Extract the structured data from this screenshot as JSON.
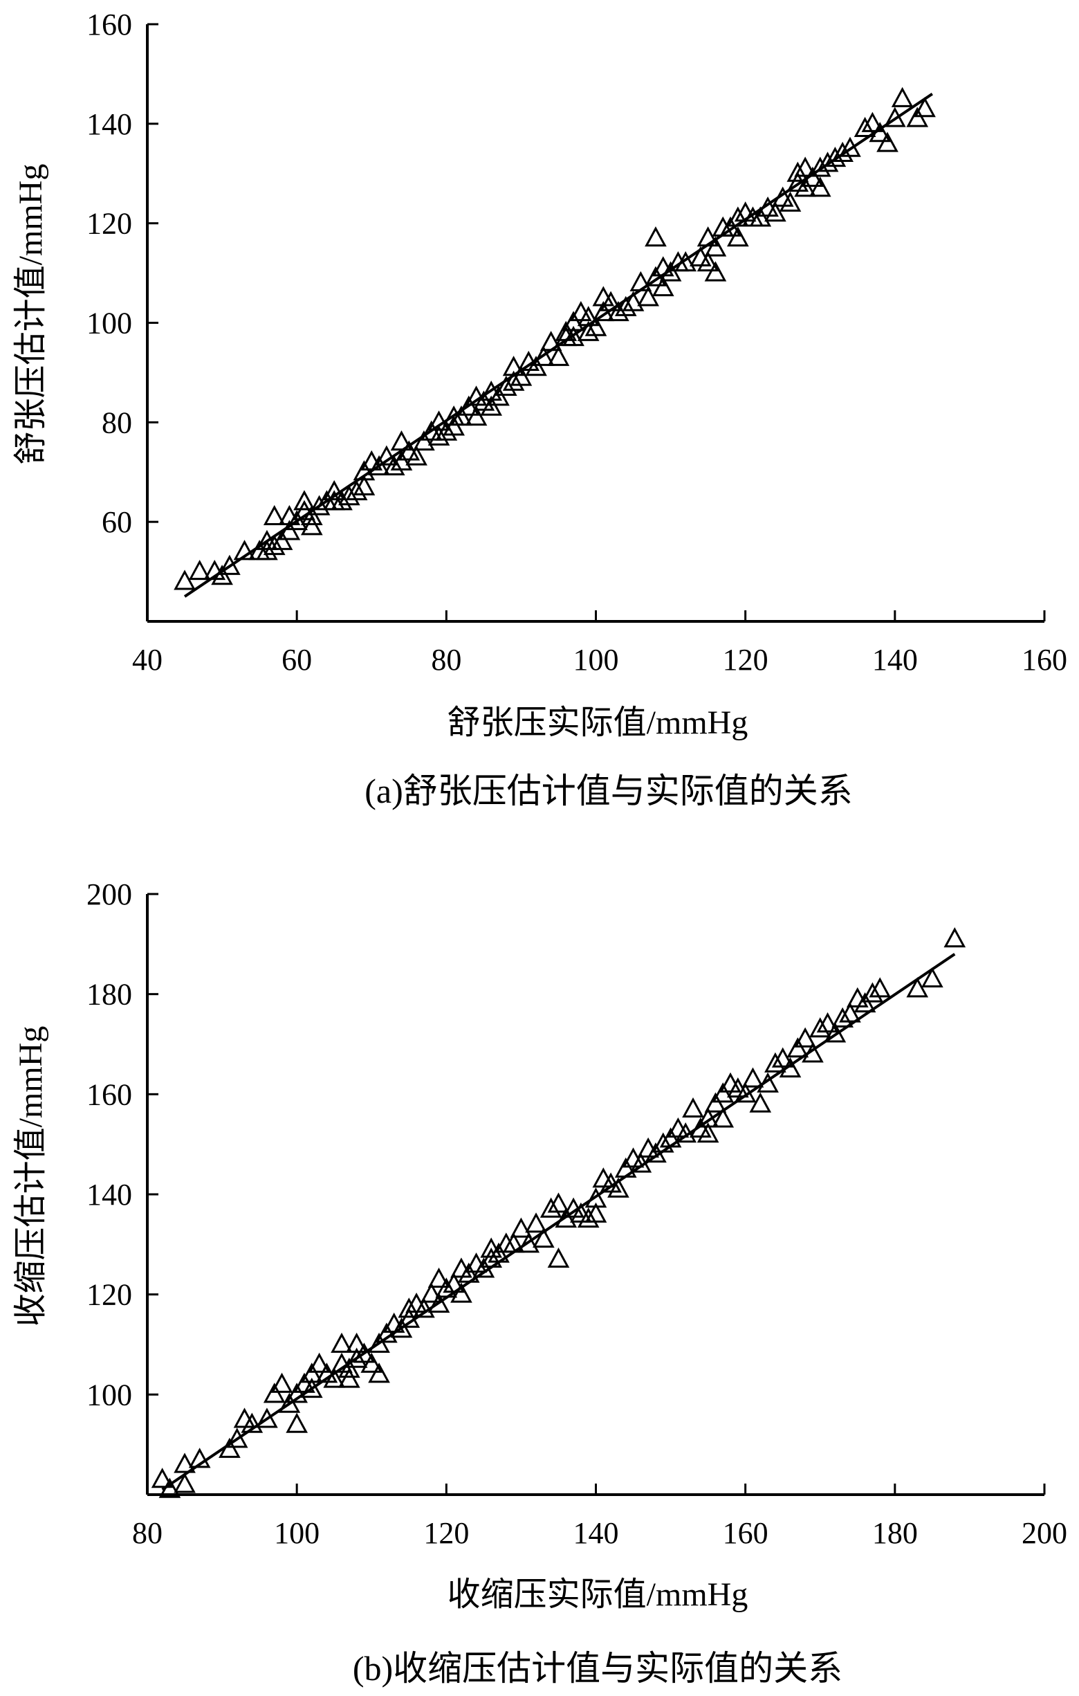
{
  "chart_data": [
    {
      "type": "scatter",
      "caption": "(a)舒张压估计值与实际值的关系",
      "xlabel": "舒张压实际值/mmHg",
      "ylabel": "舒张压估计值/mmHg",
      "xlim": [
        40,
        160
      ],
      "ylim": [
        40,
        160
      ],
      "xticks": [
        40,
        60,
        80,
        100,
        120,
        140,
        160
      ],
      "yticks": [
        60,
        80,
        100,
        120,
        140,
        160
      ],
      "marker": "triangle-open",
      "fit_line": {
        "x": [
          45,
          145
        ],
        "y": [
          45,
          146
        ]
      },
      "points": [
        [
          45,
          48
        ],
        [
          47,
          50
        ],
        [
          49,
          50
        ],
        [
          50,
          49
        ],
        [
          51,
          51
        ],
        [
          53,
          54
        ],
        [
          55,
          54
        ],
        [
          56,
          54
        ],
        [
          56,
          56
        ],
        [
          57,
          55
        ],
        [
          57,
          61
        ],
        [
          58,
          56
        ],
        [
          59,
          58
        ],
        [
          59,
          61
        ],
        [
          60,
          60
        ],
        [
          61,
          62
        ],
        [
          61,
          64
        ],
        [
          62,
          59
        ],
        [
          62,
          61
        ],
        [
          63,
          63
        ],
        [
          64,
          64
        ],
        [
          65,
          64
        ],
        [
          65,
          66
        ],
        [
          66,
          64
        ],
        [
          67,
          65
        ],
        [
          68,
          66
        ],
        [
          69,
          67
        ],
        [
          69,
          70
        ],
        [
          70,
          72
        ],
        [
          71,
          71
        ],
        [
          72,
          73
        ],
        [
          73,
          71
        ],
        [
          74,
          72
        ],
        [
          74,
          76
        ],
        [
          75,
          74
        ],
        [
          76,
          73
        ],
        [
          77,
          76
        ],
        [
          78,
          78
        ],
        [
          79,
          77
        ],
        [
          79,
          80
        ],
        [
          80,
          78
        ],
        [
          81,
          79
        ],
        [
          81,
          81
        ],
        [
          82,
          81
        ],
        [
          83,
          83
        ],
        [
          84,
          81
        ],
        [
          84,
          85
        ],
        [
          85,
          84
        ],
        [
          86,
          86
        ],
        [
          86,
          83
        ],
        [
          87,
          85
        ],
        [
          88,
          87
        ],
        [
          89,
          88
        ],
        [
          89,
          91
        ],
        [
          90,
          89
        ],
        [
          91,
          92
        ],
        [
          92,
          91
        ],
        [
          93,
          93
        ],
        [
          94,
          96
        ],
        [
          95,
          93
        ],
        [
          96,
          97
        ],
        [
          96,
          98
        ],
        [
          97,
          97
        ],
        [
          97,
          100
        ],
        [
          98,
          102
        ],
        [
          99,
          101
        ],
        [
          99,
          98
        ],
        [
          100,
          99
        ],
        [
          101,
          102
        ],
        [
          101,
          105
        ],
        [
          102,
          104
        ],
        [
          103,
          102
        ],
        [
          104,
          103
        ],
        [
          105,
          104
        ],
        [
          106,
          108
        ],
        [
          107,
          105
        ],
        [
          108,
          109
        ],
        [
          108,
          117
        ],
        [
          109,
          107
        ],
        [
          109,
          111
        ],
        [
          110,
          110
        ],
        [
          111,
          112
        ],
        [
          112,
          112
        ],
        [
          114,
          113
        ],
        [
          115,
          112
        ],
        [
          115,
          117
        ],
        [
          116,
          110
        ],
        [
          116,
          115
        ],
        [
          117,
          119
        ],
        [
          118,
          119
        ],
        [
          119,
          121
        ],
        [
          119,
          117
        ],
        [
          120,
          122
        ],
        [
          121,
          121
        ],
        [
          122,
          121
        ],
        [
          123,
          123
        ],
        [
          124,
          122
        ],
        [
          125,
          125
        ],
        [
          126,
          124
        ],
        [
          127,
          128
        ],
        [
          127,
          130
        ],
        [
          128,
          127
        ],
        [
          128,
          131
        ],
        [
          129,
          129
        ],
        [
          130,
          131
        ],
        [
          130,
          127
        ],
        [
          131,
          132
        ],
        [
          132,
          133
        ],
        [
          133,
          134
        ],
        [
          134,
          135
        ],
        [
          136,
          139
        ],
        [
          137,
          140
        ],
        [
          138,
          138
        ],
        [
          139,
          136
        ],
        [
          140,
          141
        ],
        [
          141,
          145
        ],
        [
          143,
          141
        ],
        [
          144,
          143
        ]
      ]
    },
    {
      "type": "scatter",
      "caption": "(b)收缩压估计值与实际值的关系",
      "xlabel": "收缩压实际值/mmHg",
      "ylabel": "收缩压估计值/mmHg",
      "xlim": [
        80,
        200
      ],
      "ylim": [
        80,
        200
      ],
      "xticks": [
        80,
        100,
        120,
        140,
        160,
        180,
        200
      ],
      "yticks": [
        100,
        120,
        140,
        160,
        180,
        200
      ],
      "marker": "triangle-open",
      "fit_line": {
        "x": [
          82,
          188
        ],
        "y": [
          81,
          188
        ]
      },
      "points": [
        [
          82,
          83
        ],
        [
          83,
          81
        ],
        [
          85,
          86
        ],
        [
          85,
          82
        ],
        [
          87,
          87
        ],
        [
          91,
          89
        ],
        [
          92,
          91
        ],
        [
          93,
          95
        ],
        [
          94,
          94
        ],
        [
          96,
          95
        ],
        [
          97,
          100
        ],
        [
          98,
          102
        ],
        [
          99,
          98
        ],
        [
          100,
          94
        ],
        [
          100,
          100
        ],
        [
          101,
          102
        ],
        [
          102,
          101
        ],
        [
          102,
          104
        ],
        [
          103,
          106
        ],
        [
          104,
          104
        ],
        [
          105,
          103
        ],
        [
          106,
          106
        ],
        [
          106,
          110
        ],
        [
          107,
          105
        ],
        [
          107,
          103
        ],
        [
          108,
          107
        ],
        [
          108,
          110
        ],
        [
          109,
          108
        ],
        [
          110,
          106
        ],
        [
          111,
          104
        ],
        [
          111,
          110
        ],
        [
          112,
          112
        ],
        [
          113,
          114
        ],
        [
          114,
          113
        ],
        [
          115,
          115
        ],
        [
          115,
          117
        ],
        [
          116,
          118
        ],
        [
          117,
          117
        ],
        [
          118,
          120
        ],
        [
          119,
          118
        ],
        [
          119,
          123
        ],
        [
          120,
          121
        ],
        [
          121,
          122
        ],
        [
          122,
          120
        ],
        [
          122,
          125
        ],
        [
          123,
          124
        ],
        [
          124,
          126
        ],
        [
          125,
          125
        ],
        [
          126,
          127
        ],
        [
          126,
          129
        ],
        [
          127,
          128
        ],
        [
          128,
          130
        ],
        [
          129,
          130
        ],
        [
          130,
          133
        ],
        [
          131,
          130
        ],
        [
          132,
          134
        ],
        [
          133,
          131
        ],
        [
          134,
          137
        ],
        [
          135,
          138
        ],
        [
          135,
          127
        ],
        [
          136,
          135
        ],
        [
          137,
          137
        ],
        [
          138,
          136
        ],
        [
          139,
          135
        ],
        [
          140,
          139
        ],
        [
          140,
          136
        ],
        [
          141,
          143
        ],
        [
          142,
          142
        ],
        [
          143,
          141
        ],
        [
          144,
          145
        ],
        [
          145,
          147
        ],
        [
          146,
          146
        ],
        [
          147,
          149
        ],
        [
          148,
          148
        ],
        [
          149,
          150
        ],
        [
          150,
          151
        ],
        [
          151,
          153
        ],
        [
          152,
          152
        ],
        [
          153,
          157
        ],
        [
          154,
          153
        ],
        [
          155,
          155
        ],
        [
          155,
          152
        ],
        [
          156,
          158
        ],
        [
          157,
          155
        ],
        [
          157,
          160
        ],
        [
          158,
          162
        ],
        [
          159,
          161
        ],
        [
          160,
          160
        ],
        [
          161,
          163
        ],
        [
          162,
          158
        ],
        [
          163,
          162
        ],
        [
          164,
          166
        ],
        [
          165,
          167
        ],
        [
          166,
          165
        ],
        [
          167,
          169
        ],
        [
          168,
          171
        ],
        [
          169,
          168
        ],
        [
          170,
          173
        ],
        [
          171,
          174
        ],
        [
          172,
          172
        ],
        [
          173,
          175
        ],
        [
          174,
          176
        ],
        [
          175,
          179
        ],
        [
          176,
          178
        ],
        [
          177,
          180
        ],
        [
          178,
          181
        ],
        [
          183,
          181
        ],
        [
          185,
          183
        ],
        [
          188,
          191
        ]
      ]
    }
  ]
}
